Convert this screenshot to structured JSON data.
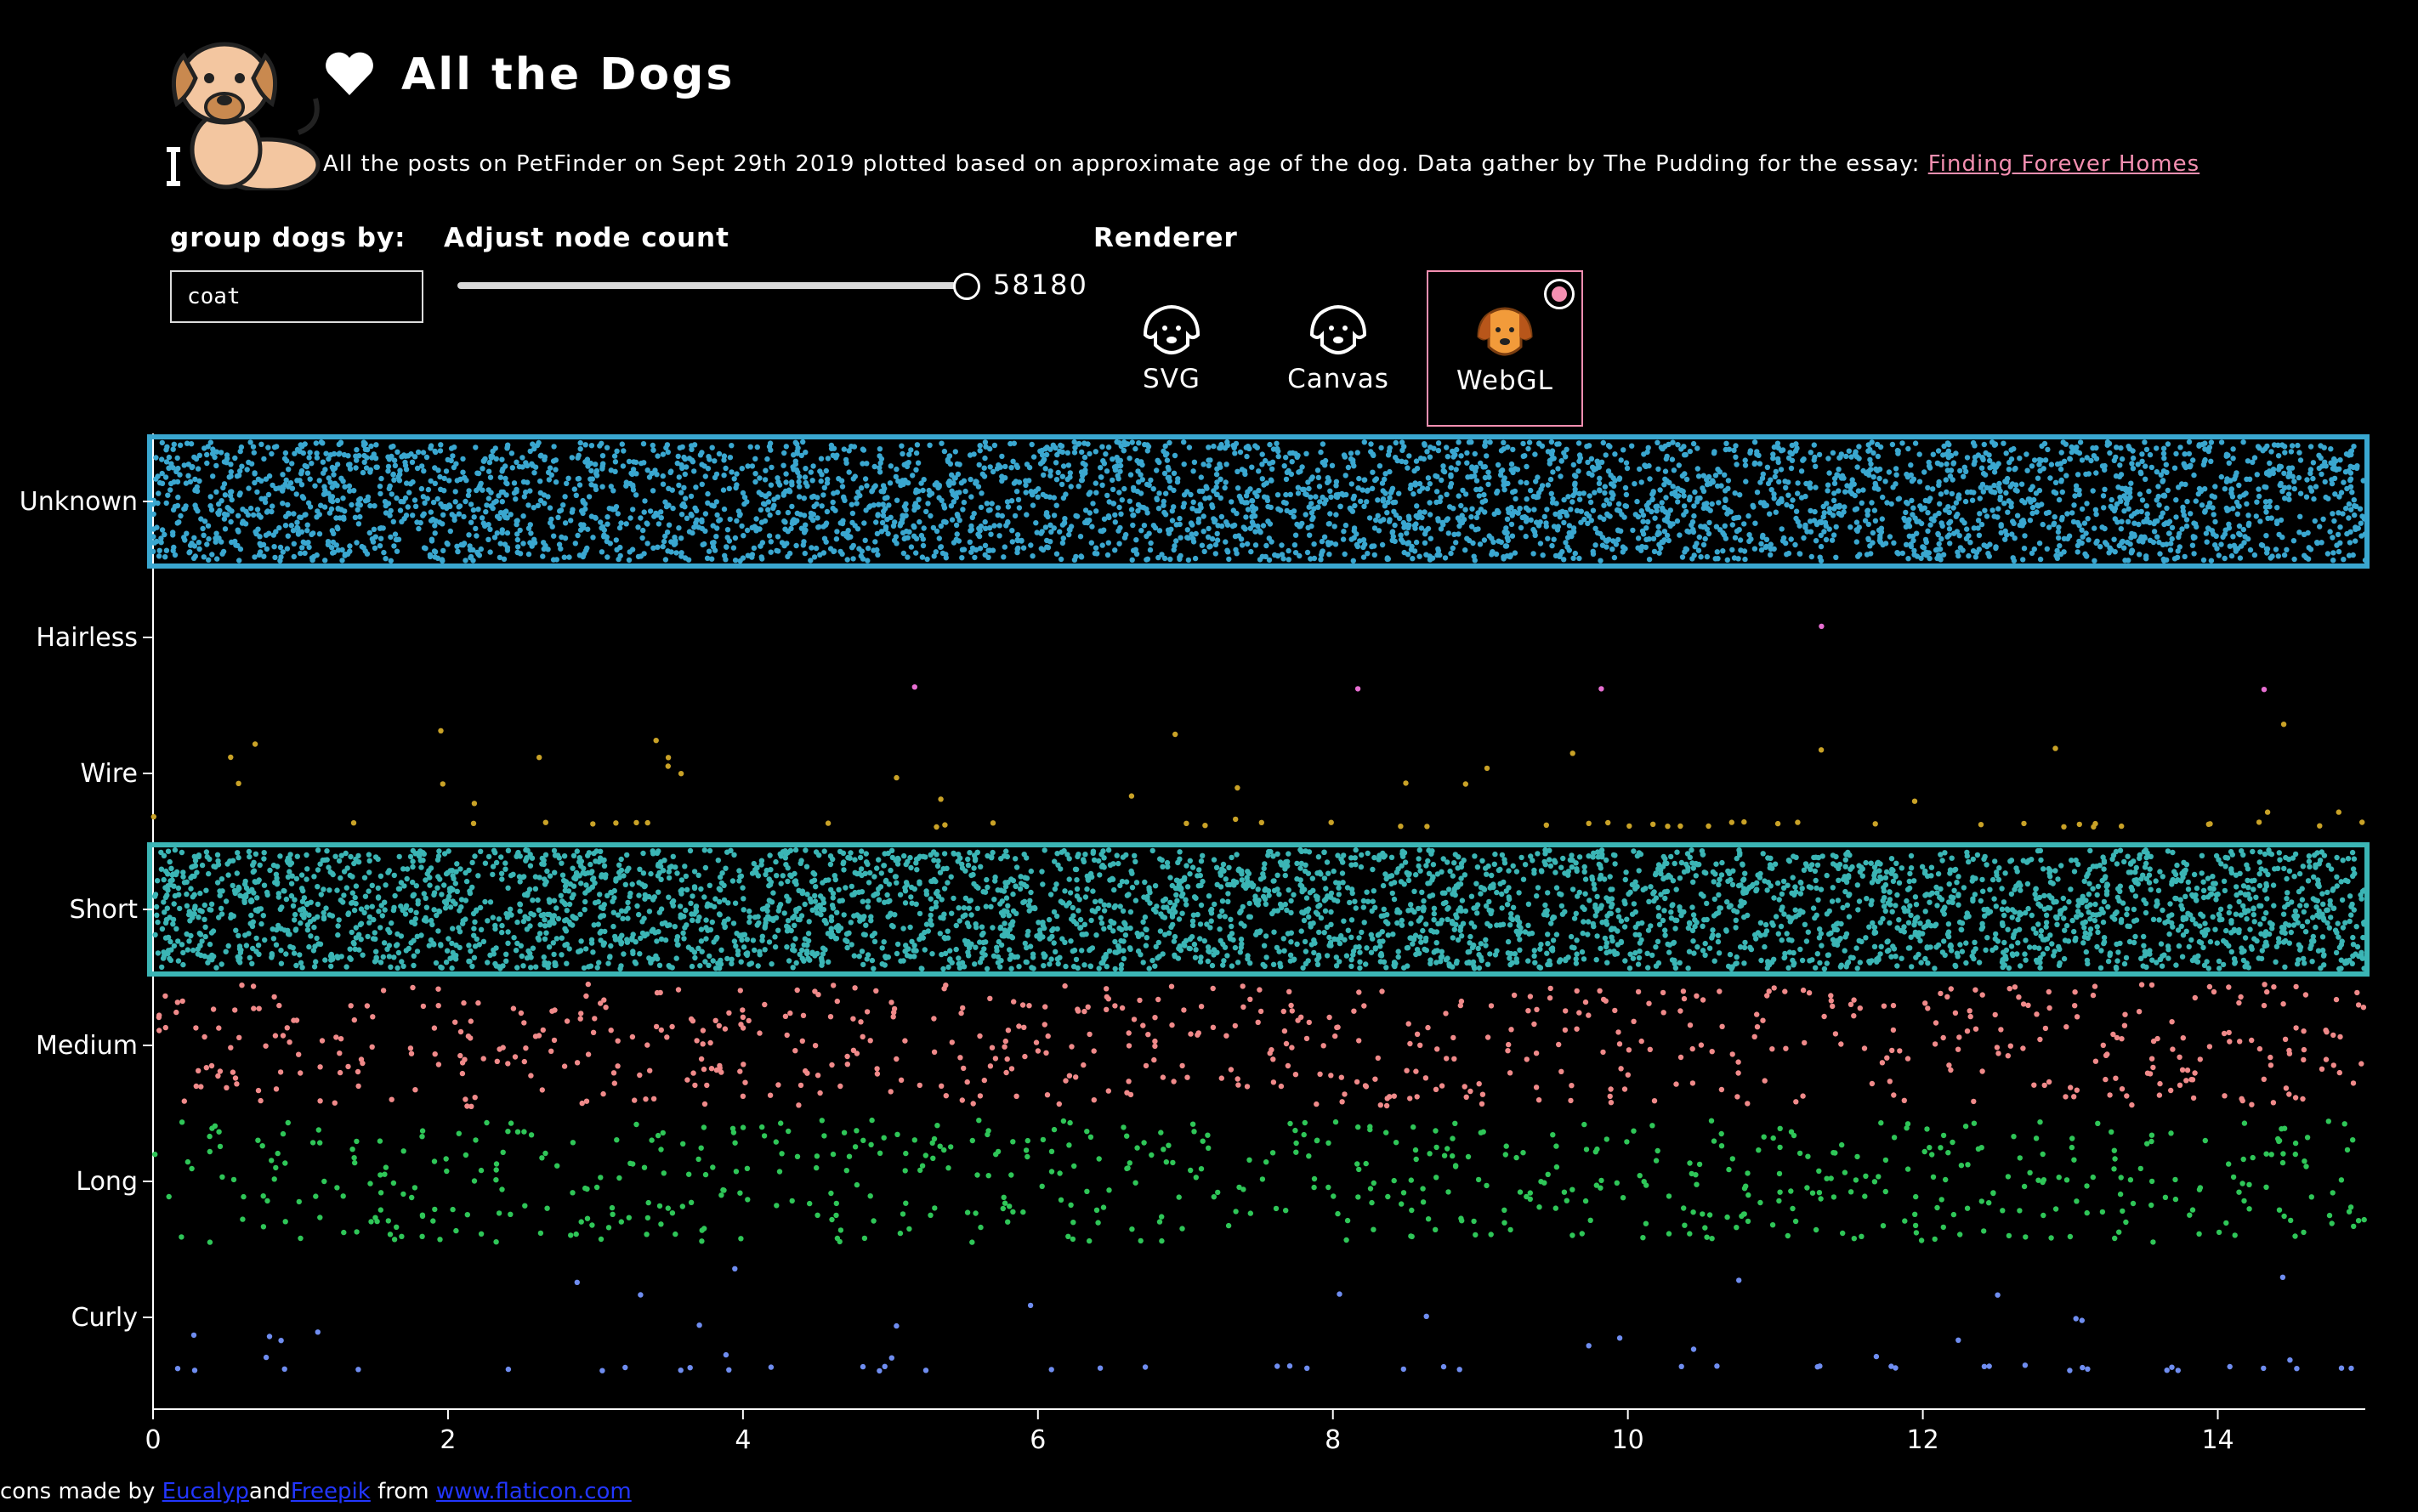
{
  "header": {
    "title": "All the Dogs",
    "subtitle": "All the posts on PetFinder on Sept 29th 2019 plotted based on approximate age of the dog. Data gather by The Pudding for the essay: ",
    "essay_link": "Finding Forever Homes"
  },
  "controls": {
    "group_label": "group dogs by:",
    "group_value": "coat",
    "node_label": "Adjust node count",
    "node_count": "58180",
    "node_fraction": 1.0,
    "renderer_label": "Renderer",
    "renderers": [
      {
        "name": "SVG",
        "selected": false
      },
      {
        "name": "Canvas",
        "selected": false
      },
      {
        "name": "WebGL",
        "selected": true
      }
    ]
  },
  "footer": {
    "prefix": "cons made by ",
    "author1": "Eucalyp",
    "and": "and",
    "author2": "Freepik",
    "from": " from ",
    "site": "www.flaticon.com"
  },
  "colors": {
    "accent": "#f48fb1",
    "Unknown": "#3aa7d0",
    "Hairless": "#e76fd2",
    "Wire": "#c9a227",
    "Short": "#3bb5b5",
    "Medium": "#f08a8a",
    "Long": "#2fc658",
    "Curly": "#6f8df0"
  },
  "chart_data": {
    "type": "scatter",
    "x_ticks": [
      "0",
      "2",
      "4",
      "6",
      "8",
      "10",
      "12",
      "14"
    ],
    "xlim": [
      0,
      15
    ],
    "categories": [
      "Unknown",
      "Hairless",
      "Wire",
      "Short",
      "Medium",
      "Long",
      "Curly"
    ],
    "series": [
      {
        "name": "Unknown",
        "density": "very high"
      },
      {
        "name": "Hairless",
        "density": "very low"
      },
      {
        "name": "Wire",
        "density": "low"
      },
      {
        "name": "Short",
        "density": "very high"
      },
      {
        "name": "Medium",
        "density": "medium"
      },
      {
        "name": "Long",
        "density": "medium"
      },
      {
        "name": "Curly",
        "density": "low"
      }
    ]
  }
}
